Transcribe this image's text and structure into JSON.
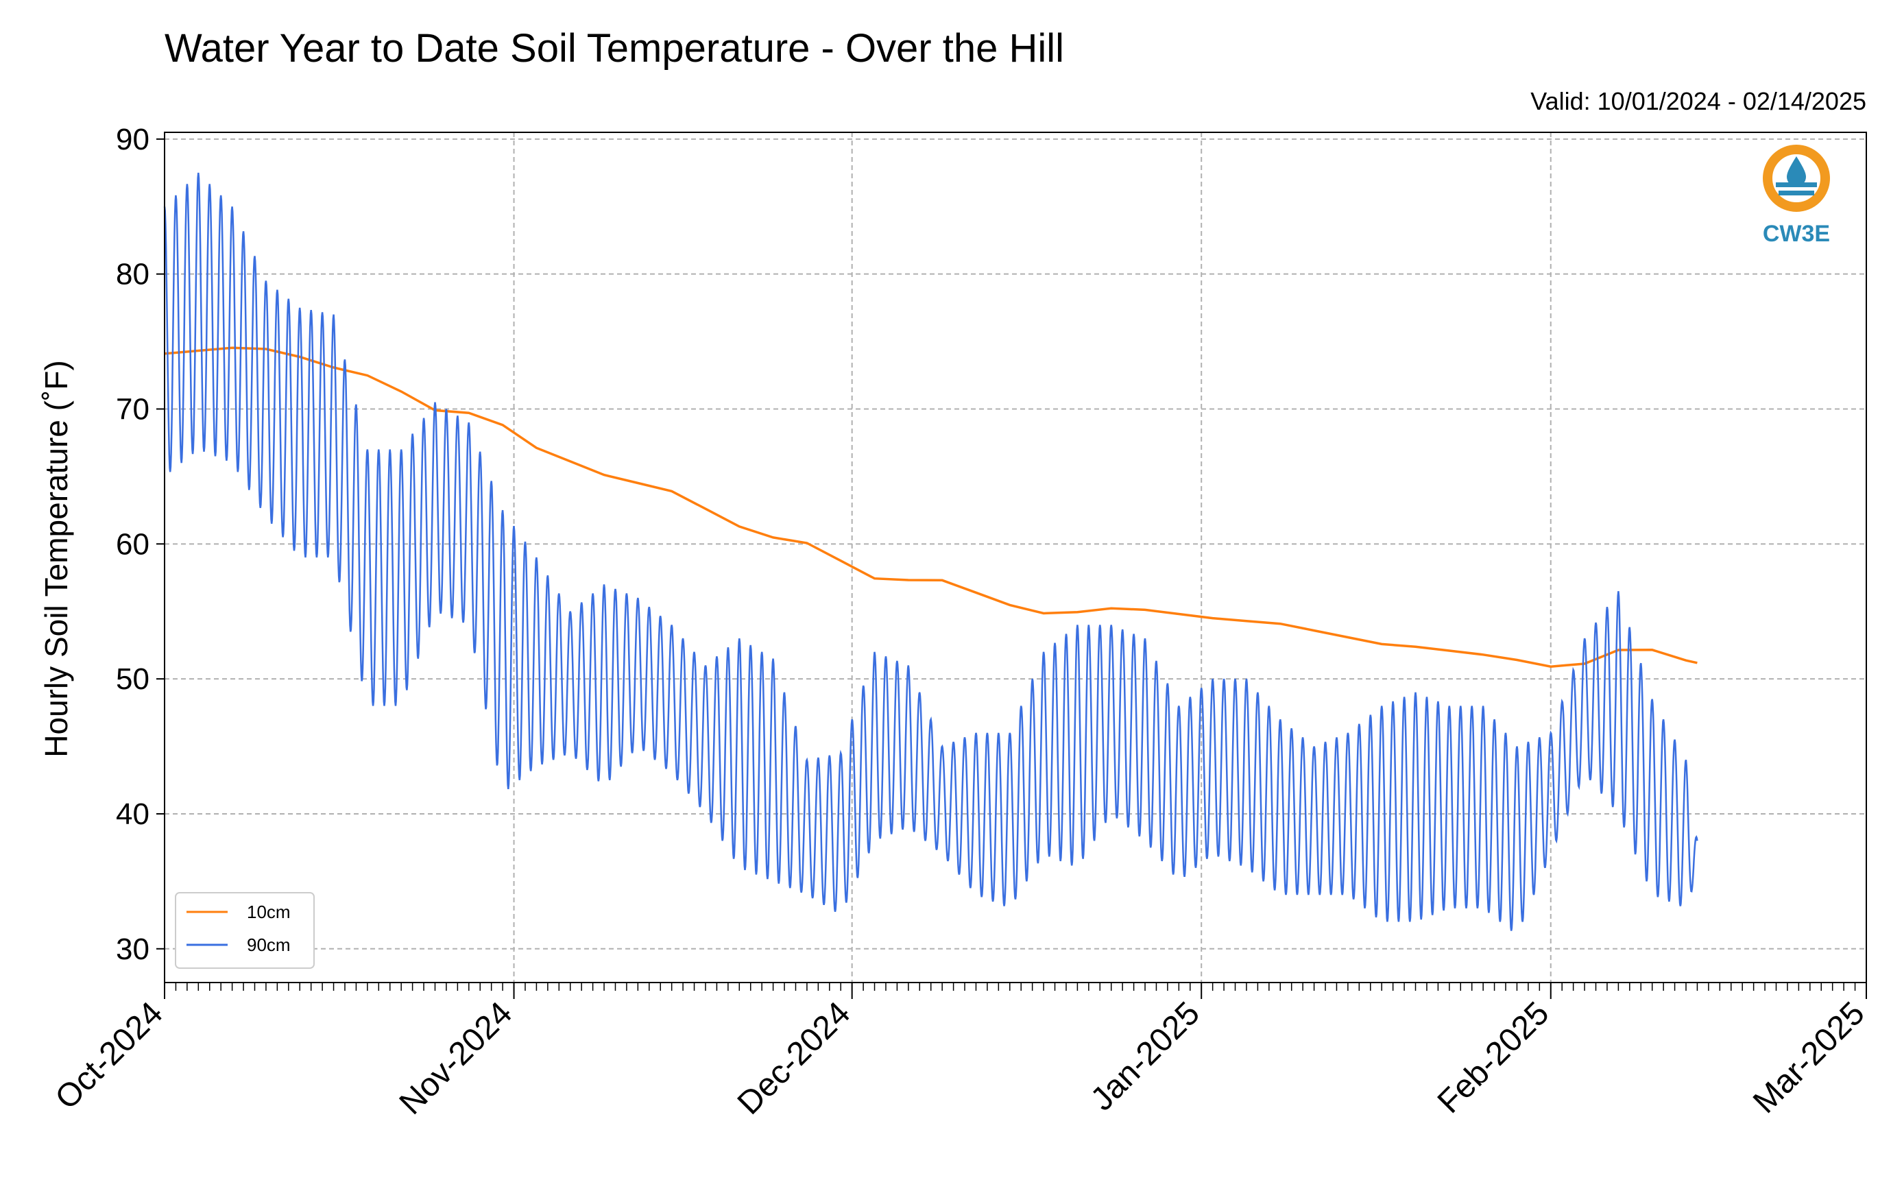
{
  "chart_data": {
    "type": "line",
    "title": "Water Year to Date Soil Temperature - Over the Hill",
    "subtitle": "Valid: 10/01/2024 - 02/14/2025",
    "xlabel": "",
    "ylabel": "Hourly Soil Temperature (˚F)",
    "ylim": [
      27.5,
      90.5
    ],
    "xlim": [
      "2024-10-01",
      "2025-03-01"
    ],
    "yticks": [
      30,
      40,
      50,
      60,
      70,
      80,
      90
    ],
    "ytick_labels": [
      "30",
      "40",
      "50",
      "60",
      "70",
      "80",
      "90"
    ],
    "xticks": [
      "2024-10-01",
      "2024-11-01",
      "2024-12-01",
      "2025-01-01",
      "2025-02-01",
      "2025-03-01"
    ],
    "xtick_labels": [
      "Oct-2024",
      "Nov-2024",
      "Dec-2024",
      "Jan-2025",
      "Feb-2025",
      "Mar-2025"
    ],
    "grid": true,
    "legend_position": "bottom-left",
    "series": [
      {
        "name": "10cm",
        "color": "#ff7f0e",
        "x": [
          "2024-10-01",
          "2024-10-04",
          "2024-10-07",
          "2024-10-10",
          "2024-10-13",
          "2024-10-16",
          "2024-10-19",
          "2024-10-22",
          "2024-10-25",
          "2024-10-28",
          "2024-10-31",
          "2024-11-03",
          "2024-11-06",
          "2024-11-09",
          "2024-11-12",
          "2024-11-15",
          "2024-11-18",
          "2024-11-21",
          "2024-11-24",
          "2024-11-27",
          "2024-11-30",
          "2024-12-03",
          "2024-12-06",
          "2024-12-09",
          "2024-12-12",
          "2024-12-15",
          "2024-12-18",
          "2024-12-21",
          "2024-12-24",
          "2024-12-27",
          "2024-12-30",
          "2025-01-02",
          "2025-01-05",
          "2025-01-08",
          "2025-01-11",
          "2025-01-14",
          "2025-01-17",
          "2025-01-20",
          "2025-01-23",
          "2025-01-26",
          "2025-01-29",
          "2025-02-01",
          "2025-02-04",
          "2025-02-07",
          "2025-02-10",
          "2025-02-13",
          "2025-02-14"
        ],
        "y": [
          74.1,
          74.3,
          74.5,
          74.4,
          73.8,
          73.0,
          72.4,
          71.2,
          69.8,
          69.6,
          68.7,
          67.0,
          66.0,
          65.0,
          64.4,
          63.8,
          62.5,
          61.2,
          60.4,
          60.0,
          58.7,
          57.4,
          57.3,
          57.3,
          56.4,
          55.5,
          54.9,
          55.0,
          55.3,
          55.2,
          54.9,
          54.6,
          54.4,
          54.2,
          53.7,
          53.2,
          52.7,
          52.5,
          52.2,
          51.9,
          51.5,
          51.0,
          51.2,
          52.2,
          52.2,
          51.4,
          51.2
        ]
      },
      {
        "name": "90cm",
        "color": "#3a6fe0",
        "x": [
          "2024-10-01",
          "2024-10-04",
          "2024-10-07",
          "2024-10-10",
          "2024-10-13",
          "2024-10-16",
          "2024-10-19",
          "2024-10-22",
          "2024-10-25",
          "2024-10-28",
          "2024-10-31",
          "2024-11-03",
          "2024-11-06",
          "2024-11-09",
          "2024-11-12",
          "2024-11-15",
          "2024-11-18",
          "2024-11-21",
          "2024-11-24",
          "2024-11-27",
          "2024-11-30",
          "2024-12-03",
          "2024-12-06",
          "2024-12-09",
          "2024-12-12",
          "2024-12-15",
          "2024-12-18",
          "2024-12-21",
          "2024-12-24",
          "2024-12-27",
          "2024-12-30",
          "2025-01-02",
          "2025-01-05",
          "2025-01-08",
          "2025-01-11",
          "2025-01-14",
          "2025-01-17",
          "2025-01-20",
          "2025-01-23",
          "2025-01-26",
          "2025-01-29",
          "2025-02-01",
          "2025-02-04",
          "2025-02-07",
          "2025-02-10",
          "2025-02-13",
          "2025-02-14"
        ],
        "y_max": [
          85.0,
          87.5,
          85.0,
          79.5,
          77.5,
          77.0,
          67.0,
          67.0,
          70.5,
          69.0,
          62.5,
          59.0,
          55.0,
          57.0,
          56.0,
          54.0,
          51.0,
          53.0,
          51.5,
          44.0,
          44.5,
          52.0,
          51.0,
          45.0,
          46.0,
          46.0,
          52.0,
          54.0,
          54.0,
          53.0,
          48.0,
          50.0,
          50.0,
          47.0,
          45.0,
          46.0,
          48.0,
          49.0,
          48.0,
          48.0,
          45.0,
          46.0,
          53.0,
          56.5,
          48.5,
          44.0,
          38.0
        ],
        "y_min": [
          65.0,
          67.0,
          66.0,
          62.0,
          59.0,
          59.0,
          48.0,
          48.0,
          55.0,
          54.0,
          41.5,
          43.5,
          44.5,
          42.0,
          45.0,
          43.0,
          40.0,
          36.0,
          35.0,
          34.0,
          32.5,
          38.0,
          39.0,
          37.0,
          34.0,
          33.0,
          37.0,
          36.0,
          40.0,
          38.0,
          35.0,
          37.0,
          36.0,
          34.0,
          34.0,
          34.0,
          32.0,
          32.0,
          33.0,
          33.0,
          31.0,
          37.0,
          43.0,
          40.0,
          34.0,
          33.0,
          35.5
        ]
      }
    ]
  },
  "legend": [
    {
      "label": "10cm",
      "color": "#ff7f0e"
    },
    {
      "label": "90cm",
      "color": "#3a6fe0"
    }
  ],
  "logo": {
    "text": "CW3E",
    "ring_color": "#f29a1f",
    "brand_color": "#2a8ab8"
  }
}
